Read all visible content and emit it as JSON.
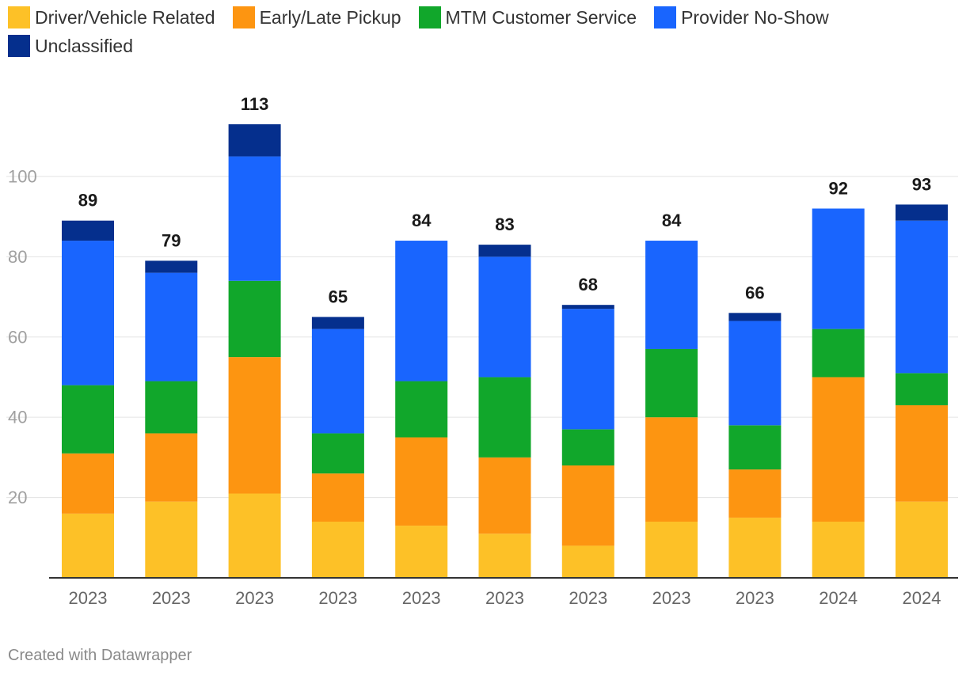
{
  "chart_data": {
    "type": "bar",
    "stacked": true,
    "categories": [
      "2023",
      "2023",
      "2023",
      "2023",
      "2023",
      "2023",
      "2023",
      "2023",
      "2023",
      "2024",
      "2024"
    ],
    "series": [
      {
        "name": "Driver/Vehicle Related",
        "color": "#fdc127",
        "values": [
          16,
          19,
          21,
          14,
          13,
          11,
          8,
          14,
          15,
          14,
          19
        ]
      },
      {
        "name": "Early/Late Pickup",
        "color": "#fd9511",
        "values": [
          15,
          17,
          34,
          12,
          22,
          19,
          20,
          26,
          12,
          36,
          24
        ]
      },
      {
        "name": "MTM Customer Service",
        "color": "#11a72b",
        "values": [
          17,
          13,
          19,
          10,
          14,
          20,
          9,
          17,
          11,
          12,
          8
        ]
      },
      {
        "name": "Provider No-Show",
        "color": "#1965fe",
        "values": [
          36,
          27,
          31,
          26,
          35,
          30,
          30,
          27,
          26,
          30,
          38
        ]
      },
      {
        "name": "Unclassified",
        "color": "#052f8d",
        "values": [
          5,
          3,
          8,
          3,
          0,
          3,
          1,
          0,
          2,
          0,
          4
        ]
      }
    ],
    "totals": [
      89,
      79,
      113,
      65,
      84,
      83,
      68,
      84,
      66,
      92,
      93
    ],
    "ylim": [
      0,
      113
    ],
    "yticks": [
      20,
      40,
      60,
      80,
      100
    ],
    "title": "",
    "xlabel": "",
    "ylabel": "",
    "grid": true,
    "legend": "top-left"
  },
  "footer": {
    "credit": "Created with Datawrapper"
  }
}
